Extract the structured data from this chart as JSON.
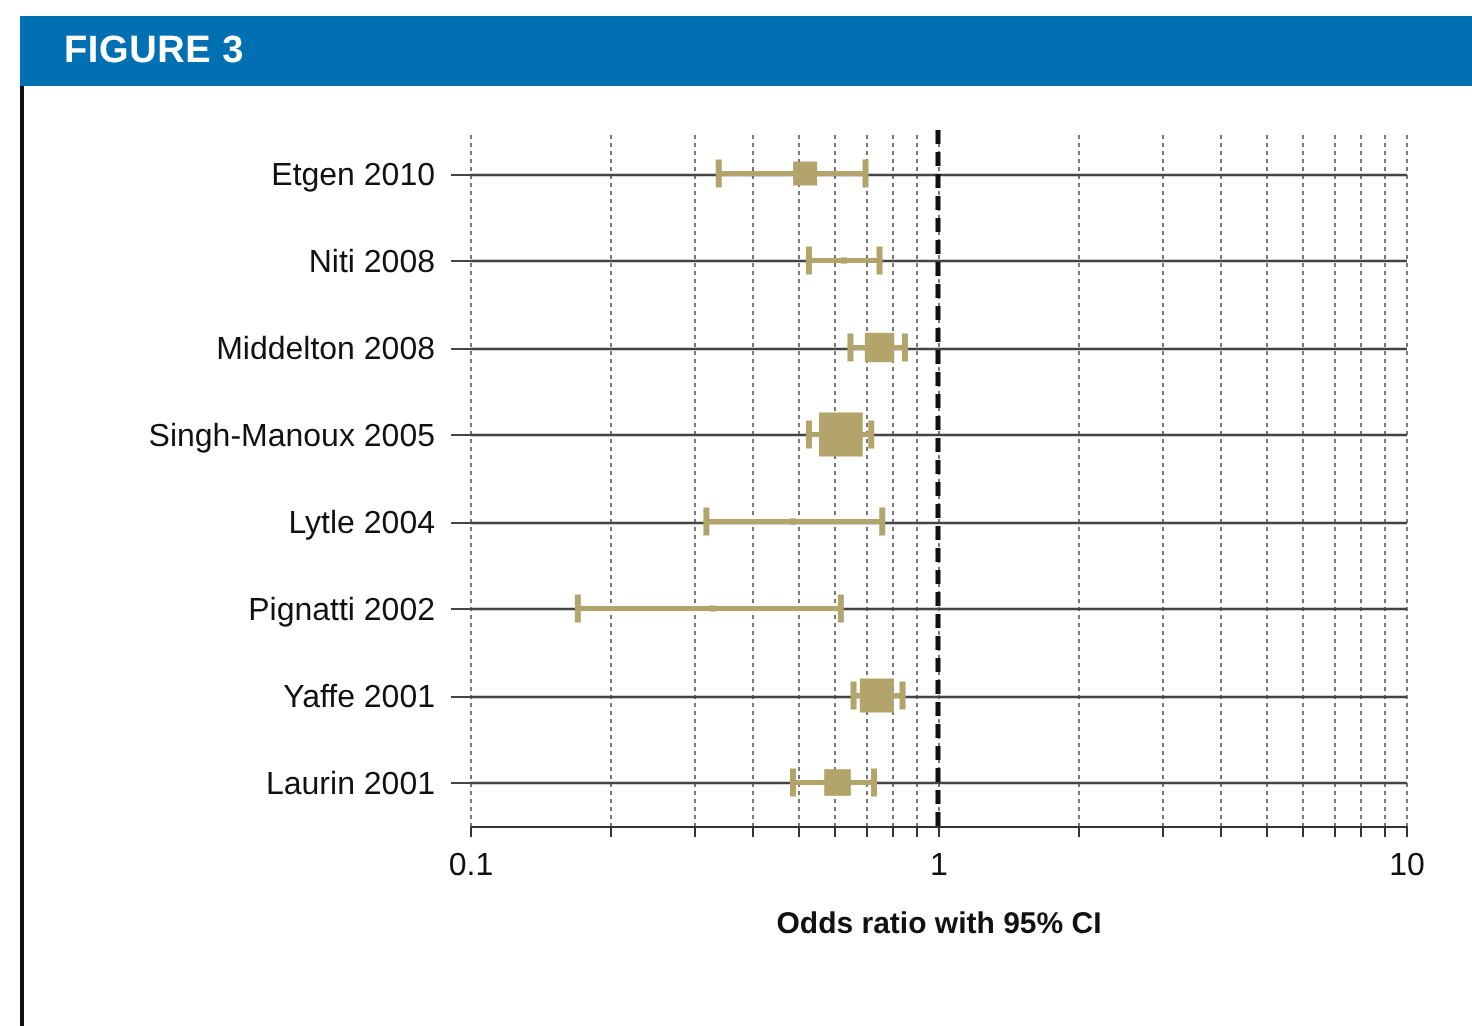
{
  "chart_data": {
    "type": "bubble",
    "title": "FIGURE 3",
    "xlabel": "Odds ratio with 95% CI",
    "orientation": "horizontal",
    "log": "x",
    "grid": true,
    "marker": "square",
    "categories": [
      "Etgen 2010",
      "Niti 2008",
      "Middelton 2008",
      "Singh-Manoux 2005",
      "Lytle 2004",
      "Pignatti 2002",
      "Yaffe 2001",
      "Laurin 2001"
    ],
    "values": [
      0.52,
      0.63,
      0.75,
      0.62,
      0.49,
      0.33,
      0.74,
      0.61
    ],
    "sizes": [
      0.3,
      0.02,
      0.45,
      1,
      0.02,
      0.02,
      0.6,
      0.37
    ],
    "errors": [
      [
        0.34,
        0.7
      ],
      [
        0.53,
        0.75
      ],
      [
        0.65,
        0.85
      ],
      [
        0.53,
        0.72
      ],
      [
        0.32,
        0.76
      ],
      [
        0.17,
        0.62
      ],
      [
        0.66,
        0.84
      ],
      [
        0.49,
        0.73
      ]
    ],
    "color": "#b3a46b",
    "xlim": [
      0.1,
      10
    ],
    "xticks": [
      0.1,
      {
        "value": 0.2,
        "label": null
      },
      {
        "value": 0.3,
        "label": null
      },
      {
        "value": 0.4,
        "label": null
      },
      {
        "value": 0.5,
        "label": null
      },
      {
        "value": 0.6,
        "label": null
      },
      {
        "value": 0.7,
        "label": null
      },
      {
        "value": 0.8,
        "label": null
      },
      {
        "value": 0.9,
        "label": null
      },
      1,
      {
        "value": 2,
        "label": null
      },
      {
        "value": 3,
        "label": null
      },
      {
        "value": 4,
        "label": null
      },
      {
        "value": 5,
        "label": null
      },
      {
        "value": 6,
        "label": null
      },
      {
        "value": 7,
        "label": null
      },
      {
        "value": 8,
        "label": null
      },
      {
        "value": 9,
        "label": null
      },
      10
    ],
    "ref_lines": [
      {
        "axis": "x",
        "value": 1,
        "line_style": "dashed",
        "color": "#111111"
      }
    ]
  }
}
